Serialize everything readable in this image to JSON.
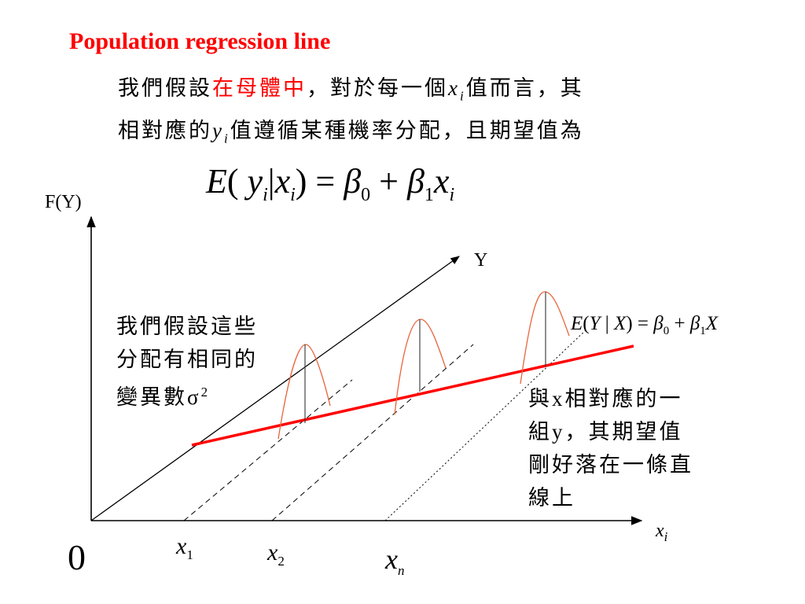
{
  "title": "Population regression line",
  "intro": {
    "line1_a": "我們假設",
    "line1_highlight": "在母體中",
    "line1_b": "，對於每一個",
    "line1_var": "x",
    "line1_sub": "i",
    "line1_c": "值而言，其",
    "line2_a": "相對應的",
    "line2_var": "y",
    "line2_sub": "i",
    "line2_b": "值遵循某種機率分配，且期望值為"
  },
  "main_formula": {
    "e": "E",
    "open": "(",
    "y": "y",
    "sub_i1": "i",
    "bar": "|",
    "x": "x",
    "sub_i2": "i",
    "close": ")",
    "eq": "=",
    "beta0": "β",
    "sub0": "0",
    "plus": "+",
    "beta1": "β",
    "sub1": "1",
    "x2": "x",
    "sub_i3": "i"
  },
  "axis": {
    "y_label": "F(Y)",
    "diag_label": "Y",
    "x_label": "x",
    "x_label_sub": "i",
    "origin": "0"
  },
  "x_ticks": [
    {
      "var": "x",
      "sub": "1"
    },
    {
      "var": "x",
      "sub": "2"
    },
    {
      "var": "x",
      "sub": "n"
    }
  ],
  "small_formula": "E(Y | X) = β₀ + β₁X",
  "small_formula_parts": {
    "e": "E",
    "open": "(",
    "y": "Y",
    "bar": "|",
    "x": "X",
    "close": ")",
    "eq": "=",
    "b": "β",
    "s0": "0",
    "plus": "+",
    "s1": "1",
    "x2": "X"
  },
  "left_note": [
    "我們假設這些",
    "分配有相同的",
    "變異數σ"
  ],
  "left_note_sup": "2",
  "right_note": [
    "與x相對應的一",
    "組y，其期望值",
    "剛好落在一條直",
    "線上"
  ],
  "colors": {
    "accent": "#ff0000",
    "curve": "#e8643c",
    "ink": "#000000"
  }
}
